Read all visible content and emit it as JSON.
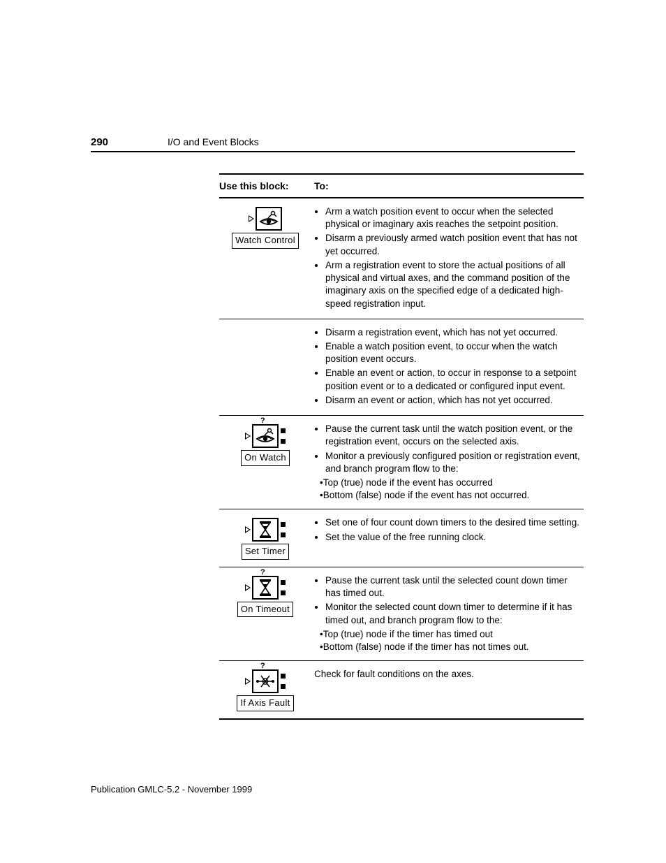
{
  "header": {
    "page_number": "290",
    "section": "I/O and Event Blocks"
  },
  "table": {
    "col1_header": "Use this block:",
    "col2_header": "To:",
    "rows": [
      {
        "block": {
          "label": "Watch Control",
          "icon": "eye",
          "has_question": false,
          "has_nodes": false
        },
        "bullets": [
          "Arm a watch position event to occur when the selected physical or imaginary axis reaches the setpoint position.",
          "Disarm a previously armed watch position event that has not yet occurred.",
          "Arm a registration event to store the actual positions of all physical and virtual axes, and the command position of the imaginary axis on the specified edge of a dedicated high-speed registration input."
        ],
        "subs": []
      },
      {
        "block": null,
        "bullets": [
          "Disarm a registration event, which has not yet occurred.",
          "Enable a watch position event, to occur when the watch position event occurs.",
          "Enable an event or action, to occur in response to a setpoint position event or to a dedicated or configured input event.",
          "Disarm an event or action, which has not yet occurred."
        ],
        "subs": []
      },
      {
        "block": {
          "label": "On Watch",
          "icon": "eye",
          "has_question": true,
          "has_nodes": true
        },
        "bullets": [
          "Pause the current task until the watch position event, or the registration event, occurs on the selected axis.",
          "Monitor a previously configured position or registration event, and branch program flow to the:"
        ],
        "subs": [
          "•Top (true) node if the event has occurred",
          "•Bottom (false) node if the event has not occurred."
        ]
      },
      {
        "block": {
          "label": "Set Timer",
          "icon": "hourglass",
          "has_question": false,
          "has_nodes": true
        },
        "bullets": [
          "Set one of four count down timers to the desired time setting.",
          "Set the value of the free running clock."
        ],
        "subs": []
      },
      {
        "block": {
          "label": "On Timeout",
          "icon": "hourglass",
          "has_question": true,
          "has_nodes": true
        },
        "bullets": [
          "Pause the current task until the selected count down timer has timed out.",
          "Monitor the selected count down timer to determine if it has timed out, and branch program flow to the:"
        ],
        "subs": [
          "•Top (true) node if the timer has timed out",
          "•Bottom (false) node if the timer has not times out."
        ]
      },
      {
        "block": {
          "label": "If Axis Fault",
          "icon": "axis",
          "has_question": true,
          "has_nodes": true
        },
        "plain": "Check for fault conditions on the axes.",
        "bullets": [],
        "subs": []
      }
    ]
  },
  "footer": "Publication GMLC-5.2 - November 1999",
  "style": {
    "text_color": "#000000",
    "background": "#ffffff",
    "rule_color": "#000000",
    "body_fontsize": 13.5,
    "header_fontsize": 14
  }
}
